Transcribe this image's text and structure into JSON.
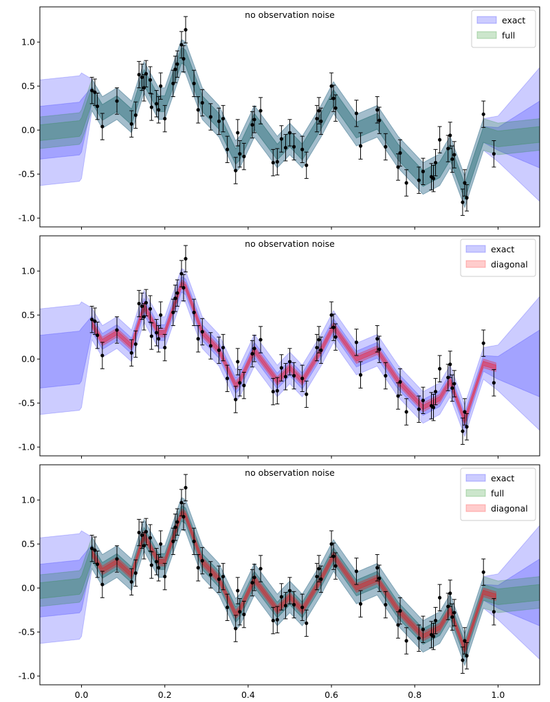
{
  "colors": {
    "exact": "#0000ff",
    "full": "#008000",
    "diagonal": "#ff0000",
    "points": "#000000"
  },
  "chart_data": [
    {
      "type": "area",
      "annotation": "no observation noise",
      "legend": [
        "exact",
        "full"
      ],
      "legend_placement": "top-right",
      "xlim": [
        -0.1,
        1.1
      ],
      "ylim": [
        -1.1,
        1.4
      ],
      "xticks": [
        0.0,
        0.2,
        0.4,
        0.6,
        0.8,
        1.0
      ],
      "xtick_labels_visible": false,
      "yticks": [
        -1.0,
        -0.5,
        0.0,
        0.5,
        1.0
      ],
      "grid": false
    },
    {
      "type": "area",
      "annotation": "no observation noise",
      "legend": [
        "exact",
        "diagonal"
      ],
      "legend_placement": "top-right",
      "xlim": [
        -0.1,
        1.1
      ],
      "ylim": [
        -1.1,
        1.4
      ],
      "xticks": [
        0.0,
        0.2,
        0.4,
        0.6,
        0.8,
        1.0
      ],
      "xtick_labels_visible": false,
      "yticks": [
        -1.0,
        -0.5,
        0.0,
        0.5,
        1.0
      ],
      "grid": false
    },
    {
      "type": "area",
      "annotation": "no observation noise",
      "legend": [
        "exact",
        "full",
        "diagonal"
      ],
      "legend_placement": "top-right",
      "xlim": [
        -0.1,
        1.1
      ],
      "ylim": [
        -1.1,
        1.4
      ],
      "xticks": [
        0.0,
        0.2,
        0.4,
        0.6,
        0.8,
        1.0
      ],
      "xtick_labels_visible": true,
      "yticks": [
        -1.0,
        -0.5,
        0.0,
        0.5,
        1.0
      ],
      "grid": false
    }
  ],
  "points": {
    "x": [
      0.025,
      0.032,
      0.038,
      0.05,
      0.085,
      0.12,
      0.13,
      0.138,
      0.145,
      0.15,
      0.155,
      0.165,
      0.168,
      0.18,
      0.185,
      0.19,
      0.2,
      0.22,
      0.225,
      0.23,
      0.24,
      0.245,
      0.25,
      0.27,
      0.28,
      0.29,
      0.31,
      0.33,
      0.34,
      0.35,
      0.37,
      0.375,
      0.38,
      0.39,
      0.41,
      0.415,
      0.43,
      0.46,
      0.47,
      0.48,
      0.49,
      0.5,
      0.51,
      0.53,
      0.54,
      0.565,
      0.57,
      0.575,
      0.6,
      0.605,
      0.61,
      0.66,
      0.67,
      0.71,
      0.715,
      0.73,
      0.76,
      0.765,
      0.78,
      0.81,
      0.82,
      0.84,
      0.845,
      0.85,
      0.86,
      0.88,
      0.885,
      0.89,
      0.895,
      0.915,
      0.92,
      0.925,
      0.965,
      0.99
    ],
    "y": [
      0.45,
      0.43,
      0.27,
      0.04,
      0.33,
      0.07,
      0.17,
      0.63,
      0.6,
      0.48,
      0.64,
      0.57,
      0.26,
      0.3,
      0.23,
      0.5,
      0.13,
      0.53,
      0.69,
      0.75,
      0.97,
      0.81,
      1.14,
      0.53,
      0.23,
      0.31,
      0.15,
      0.1,
      0.13,
      -0.22,
      -0.46,
      -0.03,
      -0.27,
      -0.3,
      0.06,
      0.12,
      0.22,
      -0.37,
      -0.36,
      -0.1,
      -0.2,
      -0.03,
      -0.19,
      -0.22,
      -0.4,
      0.13,
      0.22,
      0.1,
      0.5,
      0.36,
      0.25,
      0.19,
      -0.18,
      0.23,
      0.11,
      -0.19,
      -0.42,
      -0.26,
      -0.6,
      -0.57,
      -0.47,
      -0.53,
      -0.55,
      -0.37,
      -0.11,
      -0.21,
      -0.06,
      -0.33,
      -0.28,
      -0.82,
      -0.6,
      -0.77,
      0.18,
      -0.27
    ],
    "err": 0.15
  },
  "posterior": {
    "x": [
      -0.1,
      0.0,
      0.025,
      0.05,
      0.085,
      0.12,
      0.15,
      0.185,
      0.2,
      0.24,
      0.25,
      0.29,
      0.33,
      0.37,
      0.38,
      0.415,
      0.47,
      0.5,
      0.53,
      0.575,
      0.605,
      0.66,
      0.71,
      0.76,
      0.82,
      0.86,
      0.885,
      0.92,
      0.965,
      1.0,
      1.1
    ],
    "mean": [
      0.0,
      0.05,
      0.4,
      0.2,
      0.3,
      0.15,
      0.6,
      0.3,
      0.3,
      0.85,
      0.82,
      0.3,
      0.1,
      -0.3,
      -0.25,
      0.1,
      -0.25,
      -0.1,
      -0.25,
      0.1,
      0.37,
      0.0,
      0.1,
      -0.25,
      -0.55,
      -0.45,
      -0.25,
      -0.7,
      -0.05,
      -0.1,
      -0.05
    ],
    "sd": [
      0.3,
      0.3,
      0.09,
      0.09,
      0.09,
      0.09,
      0.09,
      0.09,
      0.09,
      0.09,
      0.09,
      0.09,
      0.09,
      0.09,
      0.09,
      0.09,
      0.09,
      0.09,
      0.09,
      0.09,
      0.09,
      0.09,
      0.09,
      0.09,
      0.09,
      0.09,
      0.09,
      0.09,
      0.09,
      0.13,
      0.38
    ],
    "full_sd": 0.06,
    "diag_sd": 0.025
  }
}
